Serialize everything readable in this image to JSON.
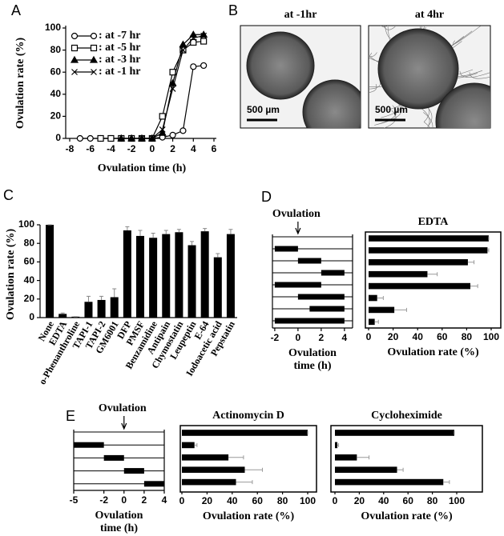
{
  "chart_data": [
    {
      "type": "line",
      "panel": "A",
      "xlabel": "Ovulation time (h)",
      "ylabel": "Ovulation rate (%)",
      "x": [
        -7,
        -6,
        -5,
        -4,
        -3,
        -2,
        -1,
        0,
        1,
        2,
        3,
        4,
        5
      ],
      "xlim": [
        -8,
        6
      ],
      "ylim": [
        0,
        100
      ],
      "xticks": [
        -8,
        -6,
        -4,
        -2,
        0,
        2,
        4,
        6
      ],
      "yticks": [
        0,
        20,
        40,
        60,
        80,
        100
      ],
      "series": [
        {
          "name": ": at -7 hr",
          "marker": "circle",
          "color": "#000000",
          "values": [
            0,
            0,
            0,
            0,
            0,
            0,
            0,
            0,
            1,
            3,
            7,
            65,
            66
          ]
        },
        {
          "name": ": at -5 hr",
          "marker": "square",
          "color": "#000000",
          "values": [
            null,
            null,
            0,
            0,
            0,
            0,
            0,
            0,
            20,
            60,
            80,
            87,
            88
          ]
        },
        {
          "name": ": at -3 hr",
          "marker": "triangle",
          "color": "#000000",
          "values": [
            null,
            null,
            null,
            null,
            0,
            0,
            0,
            0,
            5,
            50,
            85,
            94,
            94
          ]
        },
        {
          "name": ": at -1 hr",
          "marker": "cross",
          "color": "#000000",
          "values": [
            null,
            null,
            null,
            null,
            null,
            null,
            0,
            0,
            8,
            45,
            80,
            91,
            93
          ]
        }
      ]
    },
    {
      "type": "image",
      "panel": "B",
      "images": [
        {
          "title": "at -1hr",
          "scale_label": "500 µm"
        },
        {
          "title": "at 4hr",
          "scale_label": "500 µm"
        }
      ]
    },
    {
      "type": "bar",
      "panel": "C",
      "ylabel": "Ovulation rate (%)",
      "color": "#000000",
      "categories": [
        "None",
        "EDTA",
        "o-Phenanthroline",
        "TAPI-1",
        "TAPI-2",
        "GM6001",
        "DFP",
        "PMSF",
        "Benzamidine",
        "Antipain",
        "Chymostatin",
        "Leupeptin",
        "E-64",
        "Iodoacetic acid",
        "Pepstatin"
      ],
      "values": [
        100,
        4,
        1,
        17,
        19,
        22,
        94,
        88,
        86,
        90,
        92,
        78,
        93,
        65,
        90
      ],
      "errors": [
        0,
        1,
        0,
        6,
        4,
        9,
        4,
        6,
        5,
        4,
        3,
        4,
        3,
        4,
        5
      ],
      "ylim": [
        0,
        100
      ],
      "yticks": [
        0,
        20,
        40,
        60,
        80,
        100
      ]
    },
    {
      "type": "timeline",
      "panel": "D",
      "annotation": "Ovulation",
      "arrow_at": 0,
      "xlabel": [
        "Ovulation",
        "time (h)"
      ],
      "xlim": [
        -2.2,
        4.7
      ],
      "xticks": [
        -2,
        0,
        2,
        4
      ],
      "intervals": [
        null,
        [
          -2,
          0
        ],
        [
          0,
          2
        ],
        [
          2,
          4
        ],
        [
          -2,
          2
        ],
        [
          0,
          4
        ],
        [
          1,
          4
        ],
        [
          -2,
          4
        ]
      ]
    },
    {
      "type": "barh",
      "title": "EDTA",
      "xlabel": "Ovulation rate (%)",
      "color": "#000000",
      "values": [
        98,
        97,
        81,
        48,
        83,
        7,
        21,
        5
      ],
      "errors": [
        0,
        1,
        5,
        8,
        6,
        5,
        10,
        3
      ],
      "xlim": [
        0,
        100
      ],
      "xticks": [
        0,
        20,
        40,
        60,
        80,
        100
      ]
    },
    {
      "type": "timeline",
      "panel": "E",
      "annotation": "Ovulation",
      "arrow_at": 0,
      "xlabel": [
        "Ovulation",
        "time (h)"
      ],
      "xlim": [
        -5,
        4
      ],
      "xticks": [
        -5,
        -2,
        0,
        2,
        4
      ],
      "intervals": [
        null,
        [
          -5,
          -2
        ],
        [
          -2,
          0
        ],
        [
          0,
          2
        ],
        [
          2,
          4
        ]
      ]
    },
    {
      "type": "barh",
      "title": "Actinomycin D",
      "xlabel": "Ovulation rate (%)",
      "color": "#000000",
      "values": [
        100,
        10,
        37,
        50,
        43
      ],
      "errors": [
        0,
        2,
        12,
        14,
        13
      ],
      "xlim": [
        0,
        100
      ],
      "xticks": [
        0,
        20,
        40,
        60,
        80,
        100
      ]
    },
    {
      "type": "barh",
      "title": "Cycloheximide",
      "xlabel": "Ovulation rate (%)",
      "color": "#000000",
      "values": [
        98,
        2,
        18,
        51,
        89
      ],
      "errors": [
        0,
        1,
        10,
        5,
        5
      ],
      "xlim": [
        0,
        100
      ],
      "xticks": [
        0,
        20,
        40,
        60,
        80,
        100
      ]
    }
  ]
}
